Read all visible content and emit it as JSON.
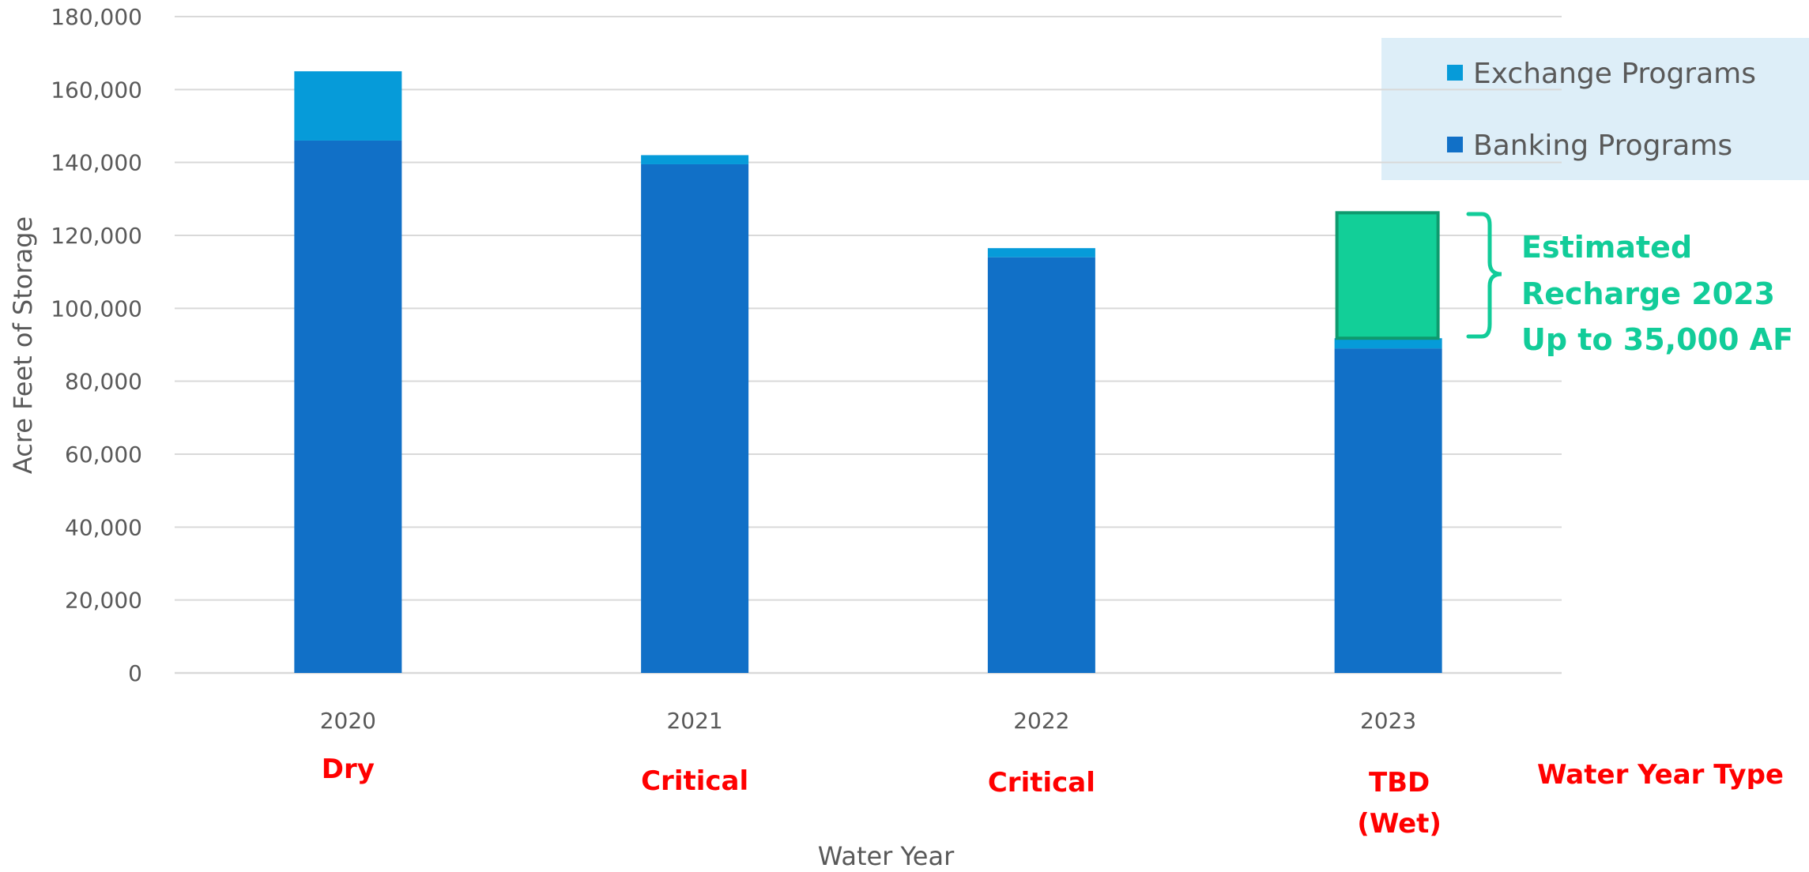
{
  "chart_data": {
    "type": "bar",
    "stacked": true,
    "categories": [
      "2020",
      "2021",
      "2022",
      "2023"
    ],
    "series": [
      {
        "name": "Banking Programs",
        "color": "#1170c7",
        "values": [
          146000,
          139500,
          114000,
          89000
        ]
      },
      {
        "name": "Exchange Programs",
        "color": "#069bd9",
        "values": [
          19000,
          2500,
          2500,
          2800
        ]
      },
      {
        "name": "",
        "color": "#12cf98",
        "values": [
          0,
          0,
          0,
          34400
        ]
      }
    ],
    "xlabel": "Water Year",
    "ylabel": "Acre Feet of Storage",
    "ylim": [
      0,
      180000
    ],
    "ytick_labels": [
      "0",
      "20,000",
      "40,000",
      "60,000",
      "80,000",
      "100,000",
      "120,000",
      "140,000",
      "160,000",
      "180,000"
    ],
    "grid": true,
    "legend_position": "top-right",
    "legend": [
      "Exchange Programs",
      "Banking Programs"
    ],
    "water_year_type": {
      "label": "Water Year Type",
      "values": [
        [
          "Dry"
        ],
        [
          "Critical"
        ],
        [
          "Critical"
        ],
        [
          "TBD",
          "(Wet)"
        ]
      ]
    },
    "annotation": {
      "lines": [
        "Estimated",
        "Recharge 2023",
        "Up to 35,000 AF"
      ],
      "color": "#12cc99"
    }
  }
}
